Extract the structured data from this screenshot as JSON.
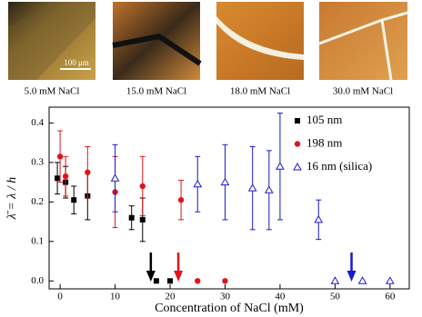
{
  "panels": [
    {
      "caption": "5.0 mM NaCl"
    },
    {
      "caption": "15.0 mM NaCl"
    },
    {
      "caption": "18.0 mM NaCl"
    },
    {
      "caption": "30.0 mM NaCl"
    }
  ],
  "scale_bar": "100 μm",
  "chart_data": {
    "type": "scatter",
    "xlabel": "Concentration of NaCl (mM)",
    "ylabel": "λ̄ = λ / h",
    "xlim": [
      -2,
      63.5
    ],
    "ylim": [
      -0.02,
      0.44
    ],
    "xticks": [
      0,
      10,
      20,
      30,
      40,
      50,
      60
    ],
    "yticks": [
      {
        "value": 0,
        "label": "0.0"
      },
      0.1,
      0.2,
      0.3,
      0.4
    ],
    "legend": "upper right",
    "series": [
      {
        "name": "105 nm",
        "color": "#000000",
        "marker": "square",
        "x": [
          -0.5,
          1,
          2.5,
          5,
          13,
          15,
          17.5,
          20
        ],
        "values": [
          0.26,
          0.25,
          0.205,
          0.215,
          0.16,
          0.155,
          0,
          0
        ],
        "errors": [
          0.04,
          0.04,
          0.035,
          0.06,
          0.03,
          0.055,
          null,
          null
        ]
      },
      {
        "name": "198 nm",
        "color": "#e0151b",
        "marker": "circle",
        "x": [
          0,
          1,
          5,
          10,
          15,
          22,
          25,
          30
        ],
        "values": [
          0.315,
          0.265,
          0.275,
          0.225,
          0.24,
          0.205,
          0,
          0
        ],
        "errors": [
          0.065,
          0.05,
          0.065,
          0.09,
          0.075,
          0.05,
          null,
          null
        ]
      },
      {
        "name": "16 nm (silica)",
        "color": "#1a1acd",
        "marker": "triangle",
        "x": [
          10,
          25,
          30,
          35,
          38,
          40,
          47,
          50,
          55,
          60
        ],
        "values": [
          0.26,
          0.245,
          0.25,
          0.235,
          0.23,
          0.29,
          0.155,
          0,
          0,
          0
        ],
        "errors": [
          0.085,
          0.07,
          0.095,
          0.105,
          0.1,
          0.135,
          0.05,
          null,
          null,
          null
        ]
      }
    ],
    "arrows": [
      {
        "x": 16.5,
        "color": "#000000"
      },
      {
        "x": 21.5,
        "color": "#e0151b"
      },
      {
        "x": 53,
        "color": "#1a1acd"
      }
    ]
  }
}
